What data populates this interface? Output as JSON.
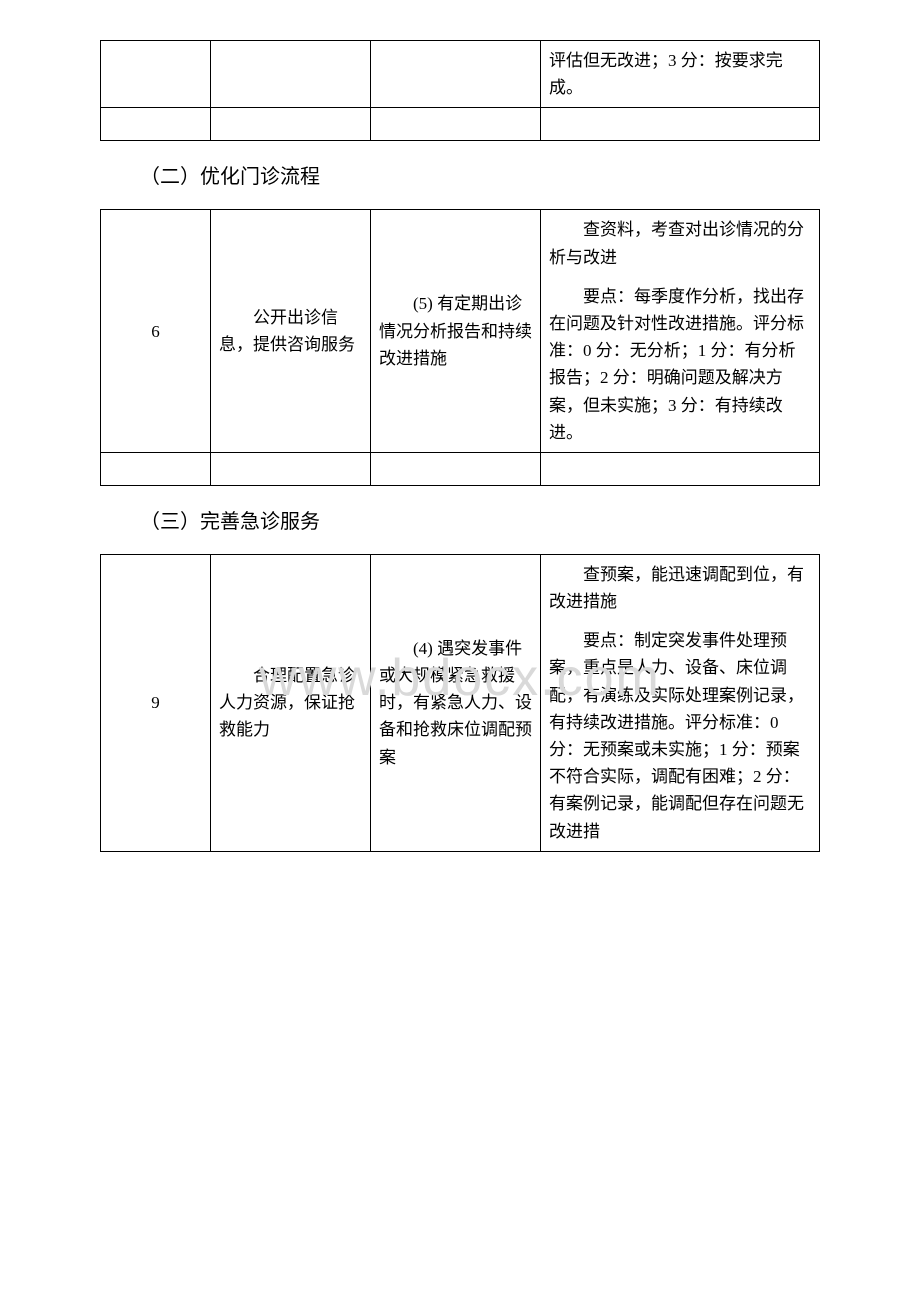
{
  "watermark": "www.bdocx.com",
  "table1": {
    "row1": {
      "c4": "评估但无改进；3 分：按要求完成。"
    }
  },
  "section2": {
    "heading": "（二）优化门诊流程",
    "row": {
      "num": "6",
      "c2": "公开出诊信息，提供咨询服务",
      "c3": "(5) 有定期出诊情况分析报告和持续改进措施",
      "c4a": "查资料，考查对出诊情况的分析与改进",
      "c4b": "要点：每季度作分析，找出存在问题及针对性改进措施。评分标准：0 分：无分析；1 分：有分析报告；2 分：明确问题及解决方案，但未实施；3 分：有持续改进。"
    }
  },
  "section3": {
    "heading": "（三）完善急诊服务",
    "row": {
      "num": "9",
      "c2": "合理配置急诊人力资源，保证抢救能力",
      "c3": "(4) 遇突发事件或大规模紧急救援时，有紧急人力、设备和抢救床位调配预案",
      "c4a": "查预案，能迅速调配到位，有改进措施",
      "c4b": "要点：制定突发事件处理预案，重点是人力、设备、床位调配，有演练及实际处理案例记录，有持续改进措施。评分标准：0 分：无预案或未实施；1 分：预案不符合实际，调配有困难；2 分：有案例记录，能调配但存在问题无改进措"
    }
  }
}
